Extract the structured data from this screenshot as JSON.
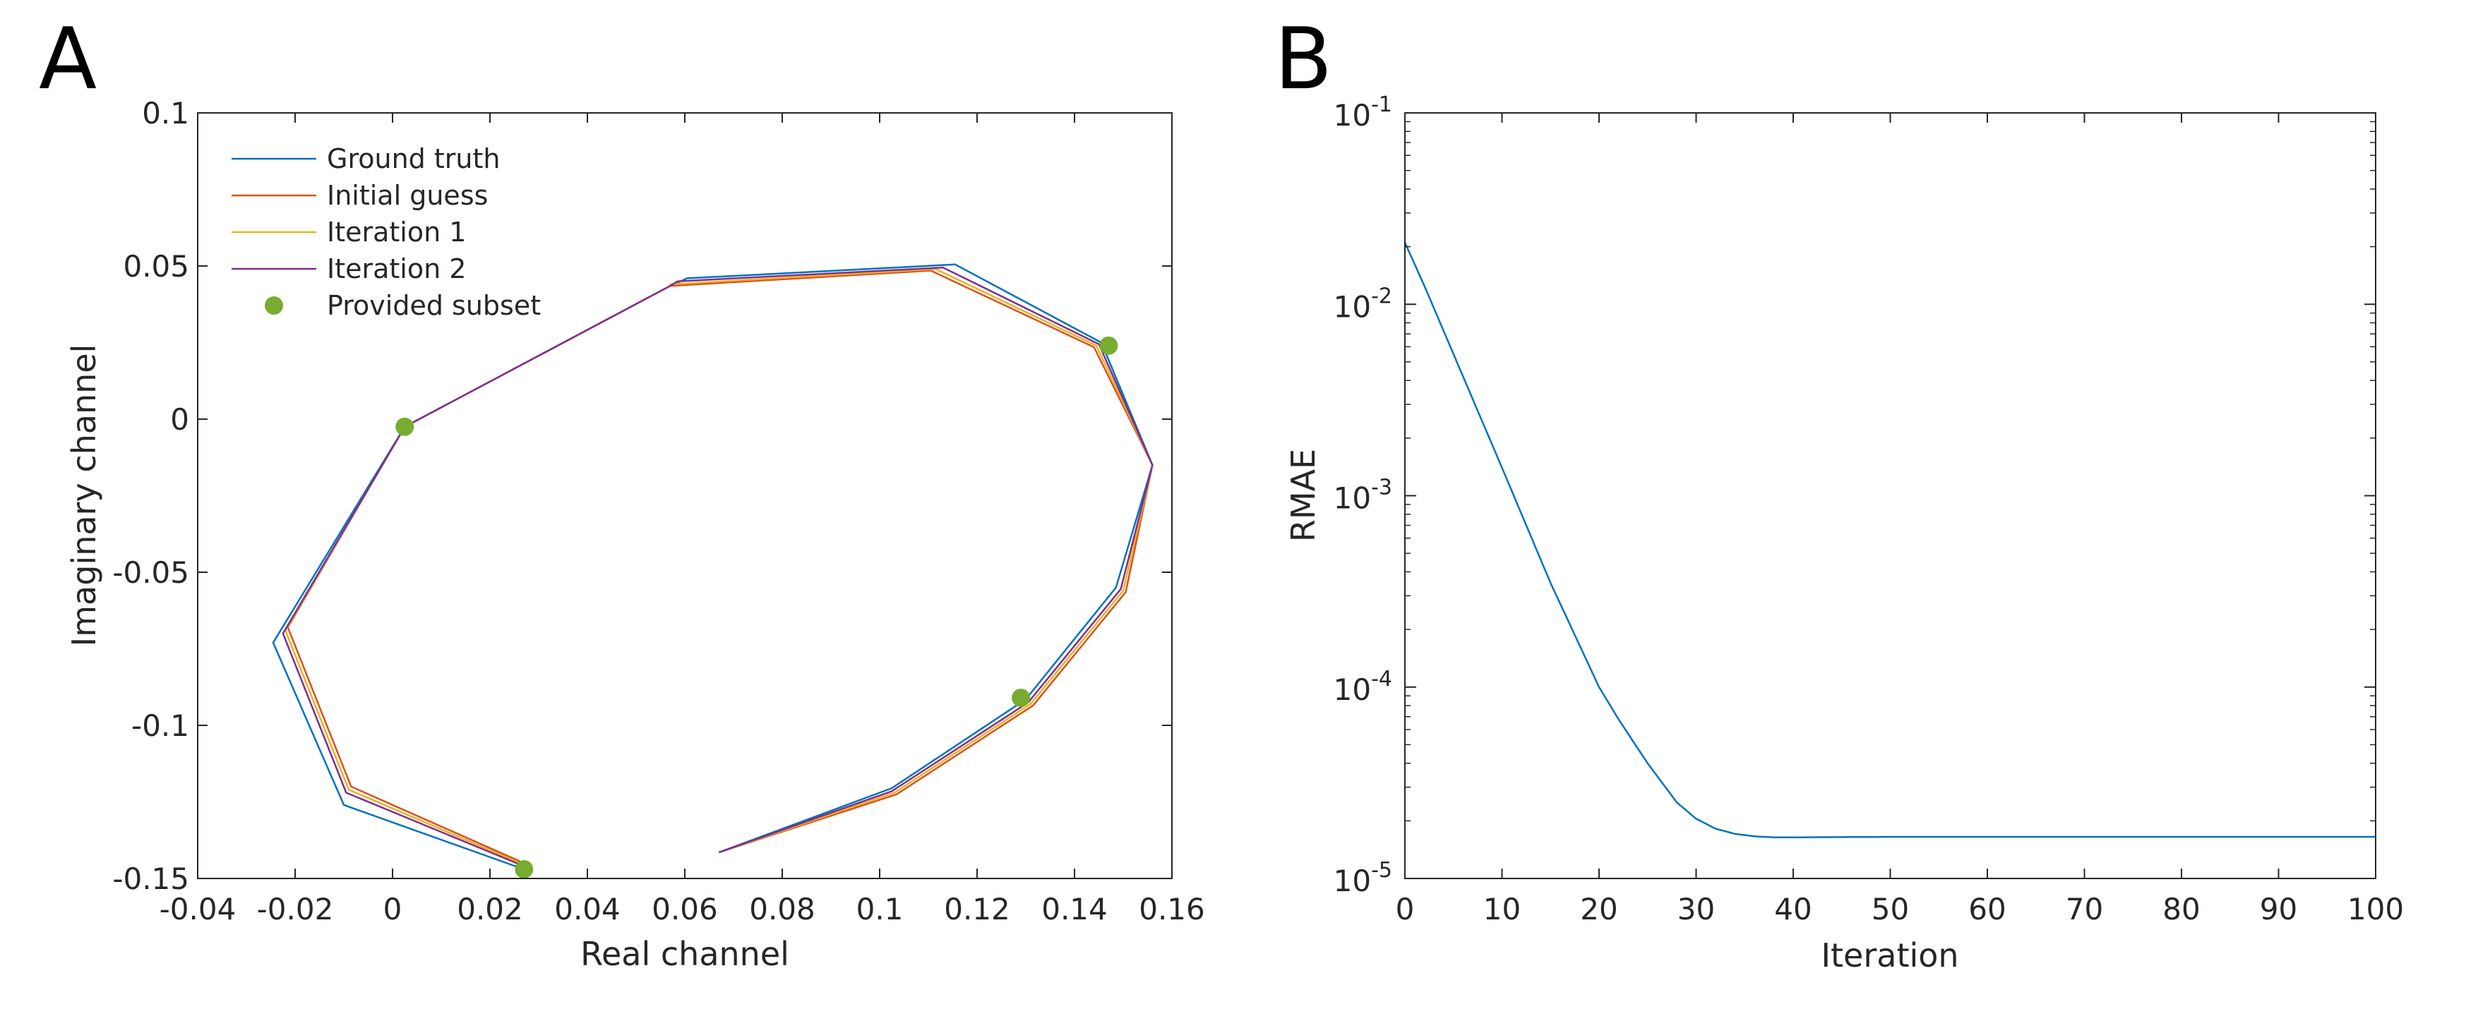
{
  "chart_data": [
    {
      "type": "line",
      "panel_label": "A",
      "xlabel": "Real channel",
      "ylabel": "Imaginary channel",
      "xlim": [
        -0.04,
        0.16
      ],
      "ylim": [
        -0.15,
        0.1
      ],
      "x_ticks": [
        -0.04,
        -0.02,
        0,
        0.02,
        0.04,
        0.06,
        0.08,
        0.1,
        0.12,
        0.14,
        0.16
      ],
      "x_tick_labels": [
        "-0.04",
        "-0.02",
        "0",
        "0.02",
        "0.04",
        "0.06",
        "0.08",
        "0.1",
        "0.12",
        "0.14",
        "0.16"
      ],
      "y_ticks": [
        -0.15,
        -0.1,
        -0.05,
        0,
        0.05,
        0.1
      ],
      "y_tick_labels": [
        "-0.15",
        "-0.1",
        "-0.05",
        "0",
        "0.05",
        "0.1"
      ],
      "grid": false,
      "legend_position": "top-left",
      "series": [
        {
          "name": "Ground truth",
          "color": "#0072BD",
          "x": [
            0.067,
            0.1025,
            0.13,
            0.1485,
            0.156,
            0.1455,
            0.1155,
            0.0605,
            0.057,
            0.0025,
            -0.0245,
            -0.01,
            0.027
          ],
          "y": [
            -0.1415,
            -0.1205,
            -0.0915,
            -0.055,
            -0.015,
            0.025,
            0.0505,
            0.046,
            0.0435,
            -0.0025,
            -0.073,
            -0.126,
            -0.147
          ]
        },
        {
          "name": "Initial guess",
          "color": "#D95319",
          "x": [
            0.067,
            0.1035,
            0.1315,
            0.1505,
            0.156,
            0.144,
            0.1105,
            0.057,
            0.057,
            0.0025,
            -0.0215,
            -0.0085,
            0.027
          ],
          "y": [
            -0.1415,
            -0.1225,
            -0.0935,
            -0.0565,
            -0.015,
            0.0235,
            0.0485,
            0.0435,
            0.0435,
            -0.0025,
            -0.068,
            -0.12,
            -0.145
          ]
        },
        {
          "name": "Iteration 1",
          "color": "#EDB120",
          "x": [
            0.067,
            0.103,
            0.131,
            0.15,
            0.156,
            0.1445,
            0.1115,
            0.057,
            0.057,
            0.0025,
            -0.022,
            -0.009,
            0.027
          ],
          "y": [
            -0.1415,
            -0.122,
            -0.093,
            -0.056,
            -0.015,
            0.024,
            0.049,
            0.044,
            0.0435,
            -0.0025,
            -0.069,
            -0.121,
            -0.1455
          ]
        },
        {
          "name": "Iteration 2",
          "color": "#7E2F8E",
          "x": [
            0.067,
            0.1025,
            0.1305,
            0.1495,
            0.156,
            0.145,
            0.113,
            0.0585,
            0.057,
            0.0025,
            -0.0225,
            -0.0095,
            0.027
          ],
          "y": [
            -0.1415,
            -0.1215,
            -0.0925,
            -0.0555,
            -0.015,
            0.0245,
            0.0495,
            0.045,
            0.0435,
            -0.0025,
            -0.07,
            -0.122,
            -0.146
          ]
        },
        {
          "name": "Provided subset",
          "color": "#77AC30",
          "marker": "o",
          "x": [
            0.0025,
            0.147,
            0.129,
            0.027
          ],
          "y": [
            -0.0025,
            0.024,
            -0.091,
            -0.147
          ]
        }
      ]
    },
    {
      "type": "line",
      "panel_label": "B",
      "xlabel": "Iteration",
      "ylabel": "RMAE",
      "yscale": "log",
      "xlim": [
        0,
        100
      ],
      "ylim": [
        1e-05,
        0.1
      ],
      "x_ticks": [
        0,
        10,
        20,
        30,
        40,
        50,
        60,
        70,
        80,
        90,
        100
      ],
      "x_tick_labels": [
        "0",
        "10",
        "20",
        "30",
        "40",
        "50",
        "60",
        "70",
        "80",
        "90",
        "100"
      ],
      "y_ticks": [
        1e-05,
        0.0001,
        0.001,
        0.01,
        0.1
      ],
      "y_tick_labels": [
        {
          "base": "10",
          "exp": "-5"
        },
        {
          "base": "10",
          "exp": "-4"
        },
        {
          "base": "10",
          "exp": "-3"
        },
        {
          "base": "10",
          "exp": "-2"
        },
        {
          "base": "10",
          "exp": "-1"
        }
      ],
      "grid": false,
      "series": [
        {
          "name": "RMAE",
          "color": "#0072BD",
          "x": [
            0,
            2,
            5,
            10,
            15,
            20,
            22,
            25,
            28,
            30,
            32,
            34,
            36,
            38,
            40,
            50,
            60,
            70,
            80,
            90,
            100
          ],
          "y": [
            0.021,
            0.0125,
            0.0055,
            0.0014,
            0.00035,
            0.0001,
            6.8e-05,
            4e-05,
            2.5e-05,
            2.05e-05,
            1.82e-05,
            1.71e-05,
            1.66e-05,
            1.64e-05,
            1.64e-05,
            1.65e-05,
            1.65e-05,
            1.65e-05,
            1.65e-05,
            1.65e-05,
            1.65e-05
          ]
        }
      ]
    }
  ]
}
